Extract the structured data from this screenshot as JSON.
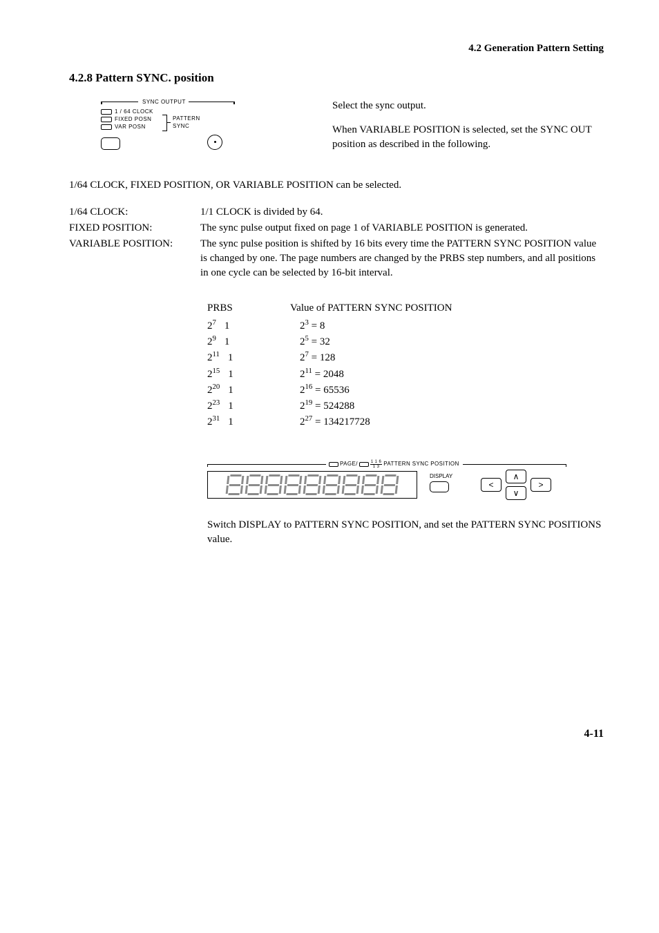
{
  "header": {
    "section_ref": "4.2  Generation Pattern Setting",
    "subsection": "4.2.8 Pattern SYNC. position"
  },
  "sync_panel": {
    "title": "SYNC  OUTPUT",
    "opt1": "1 / 64  CLOCK",
    "opt2": "FIXED  POSN",
    "opt3": "VAR  POSN",
    "group_top": "PATTERN",
    "group_bot": "SYNC"
  },
  "intro": {
    "p1": "Select the sync output.",
    "p2": "When VARIABLE POSITION is selected, set the SYNC OUT position as described in the following."
  },
  "selectable_line": "1/64 CLOCK, FIXED POSITION, OR VARIABLE POSITION can be selected.",
  "defs": {
    "l1": "1/64 CLOCK:",
    "b1": "1/1 CLOCK is divided by 64.",
    "l2": "FIXED POSITION:",
    "b2": "The sync pulse output fixed on page 1 of VARIABLE POSITION is generated.",
    "l3": "VARIABLE POSITION:",
    "b3": "The sync pulse position is shifted by 16 bits every time the PATTERN SYNC POSITION value is changed by one.  The page numbers are changed by the PRBS step numbers, and all positions in one cycle can be selected by 16-bit interval."
  },
  "prbs": {
    "head_left": "PRBS",
    "head_right": "Value of PATTERN SYNC POSITION",
    "rows": [
      {
        "exp": "7",
        "val_exp": "3",
        "val": "8"
      },
      {
        "exp": "9",
        "val_exp": "5",
        "val": "32"
      },
      {
        "exp": "11",
        "val_exp": "7",
        "val": "128"
      },
      {
        "exp": "15",
        "val_exp": "11",
        "val": "2048"
      },
      {
        "exp": "20",
        "val_exp": "16",
        "val": "65536"
      },
      {
        "exp": "23",
        "val_exp": "19",
        "val": "524288"
      },
      {
        "exp": "31",
        "val_exp": "27",
        "val": "134217728"
      }
    ]
  },
  "display_panel": {
    "title_prefix": "PAGE/",
    "frac_num": "1 1 6",
    "frac_den": "1 3",
    "title_suffix": "PATTERN  SYNC  POSITION",
    "display_label": "DISPLAY"
  },
  "final_note": "Switch DISPLAY to PATTERN SYNC POSITION, and set the PATTERN SYNC POSITIONS value.",
  "page_num": "4-11"
}
